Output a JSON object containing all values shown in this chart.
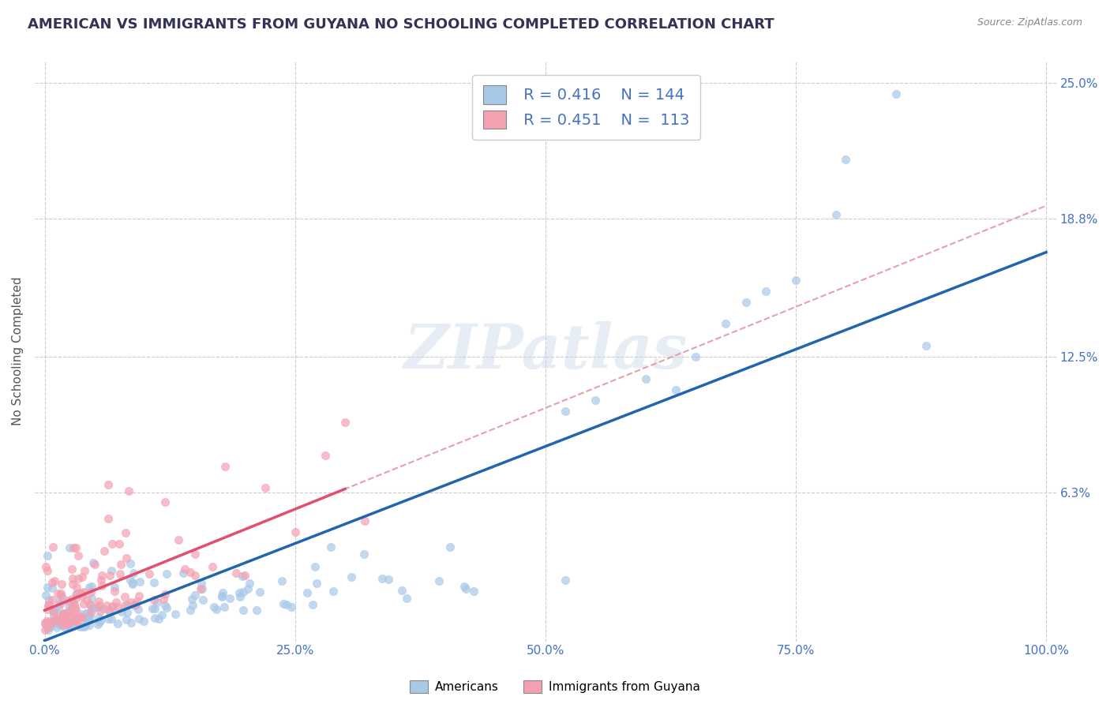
{
  "title": "AMERICAN VS IMMIGRANTS FROM GUYANA NO SCHOOLING COMPLETED CORRELATION CHART",
  "source": "Source: ZipAtlas.com",
  "ylabel": "No Schooling Completed",
  "watermark": "ZIPatlas",
  "legend_r_american": "0.416",
  "legend_n_american": "144",
  "legend_r_immigrant": "0.451",
  "legend_n_immigrant": "113",
  "legend_label_american": "Americans",
  "legend_label_immigrant": "Immigrants from Guyana",
  "american_color": "#a8c8e8",
  "immigrant_color": "#f4a0b0",
  "american_line_color": "#2166ac",
  "immigrant_line_color": "#e05070",
  "immigrant_dash_color": "#e8a0a8",
  "ytick_labels": [
    "6.3%",
    "12.5%",
    "18.8%",
    "25.0%"
  ],
  "ytick_values": [
    6.3,
    12.5,
    18.8,
    25.0
  ],
  "xtick_labels": [
    "0.0%",
    "25.0%",
    "50.0%",
    "75.0%",
    "100.0%"
  ],
  "xtick_values": [
    0.0,
    25.0,
    50.0,
    75.0,
    100.0
  ],
  "xlim": [
    -1,
    101
  ],
  "ylim": [
    -0.5,
    26
  ],
  "title_fontsize": 13,
  "axis_label_fontsize": 11,
  "tick_fontsize": 11,
  "legend_fontsize": 14,
  "background_color": "#ffffff",
  "grid_color": "#cccccc",
  "american_n": 144,
  "immigrant_n": 113,
  "american_R": 0.416,
  "immigrant_R": 0.451
}
